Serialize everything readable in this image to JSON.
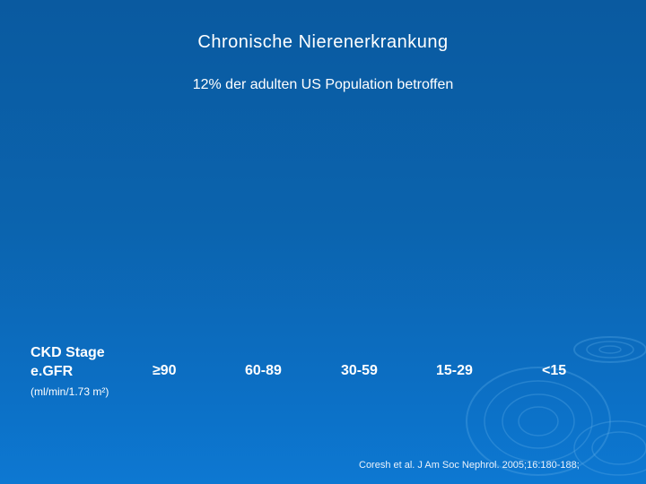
{
  "slide": {
    "title": "Chronische Nierenerkrankung",
    "subtitle": "12% der adulten US Population betroffen"
  },
  "table": {
    "stage_label": "CKD Stage",
    "egfr_label": "e.GFR",
    "unit_label": "(ml/min/1.73 m²)",
    "egfr_values": [
      "≥90",
      "60-89",
      "30-59",
      "15-29",
      "<15"
    ]
  },
  "citation": "Coresh et al. J Am Soc Nephrol. 2005;16:180-188;",
  "colors": {
    "background_top": "#0a5aa0",
    "background_bottom": "#0d78d2",
    "text": "#ffffff"
  }
}
